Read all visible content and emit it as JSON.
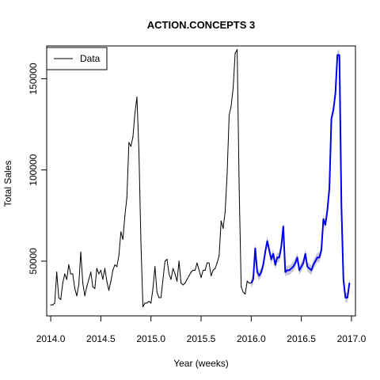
{
  "chart_data": {
    "type": "line",
    "title": "ACTION.CONCEPTS 3",
    "xlabel": "Year (weeks)",
    "ylabel": "Total Sales",
    "xlim": [
      2013.96,
      2017.04
    ],
    "ylim": [
      20000,
      168000
    ],
    "x_ticks": [
      {
        "value": 2014.0,
        "label": "2014.0"
      },
      {
        "value": 2014.5,
        "label": "2014.5"
      },
      {
        "value": 2015.0,
        "label": "2015.0"
      },
      {
        "value": 2015.5,
        "label": "2015.5"
      },
      {
        "value": 2016.0,
        "label": "2016.0"
      },
      {
        "value": 2016.5,
        "label": "2016.5"
      },
      {
        "value": 2017.0,
        "label": "2017.0"
      }
    ],
    "y_ticks": [
      {
        "value": 50000,
        "label": "50000"
      },
      {
        "value": 100000,
        "label": "100000"
      },
      {
        "value": 150000,
        "label": "150000"
      }
    ],
    "grid": false,
    "legend": {
      "position": "top-left",
      "entries": [
        {
          "label": "Data",
          "color": "#000000"
        }
      ]
    },
    "series": [
      {
        "name": "Data",
        "color": "#000000",
        "points": [
          [
            2014.0,
            26000
          ],
          [
            2014.02,
            26000
          ],
          [
            2014.04,
            27000
          ],
          [
            2014.06,
            44000
          ],
          [
            2014.08,
            30000
          ],
          [
            2014.1,
            29000
          ],
          [
            2014.12,
            38000
          ],
          [
            2014.14,
            43000
          ],
          [
            2014.16,
            40000
          ],
          [
            2014.18,
            48000
          ],
          [
            2014.2,
            43000
          ],
          [
            2014.22,
            43000
          ],
          [
            2014.24,
            35000
          ],
          [
            2014.26,
            31000
          ],
          [
            2014.28,
            37000
          ],
          [
            2014.3,
            55000
          ],
          [
            2014.32,
            38000
          ],
          [
            2014.34,
            31000
          ],
          [
            2014.36,
            36000
          ],
          [
            2014.38,
            40000
          ],
          [
            2014.4,
            44000
          ],
          [
            2014.42,
            36000
          ],
          [
            2014.44,
            35000
          ],
          [
            2014.46,
            46000
          ],
          [
            2014.48,
            43000
          ],
          [
            2014.5,
            45000
          ],
          [
            2014.52,
            40000
          ],
          [
            2014.54,
            46000
          ],
          [
            2014.56,
            39000
          ],
          [
            2014.58,
            34000
          ],
          [
            2014.6,
            39000
          ],
          [
            2014.62,
            45000
          ],
          [
            2014.64,
            48000
          ],
          [
            2014.66,
            47000
          ],
          [
            2014.68,
            53000
          ],
          [
            2014.7,
            66000
          ],
          [
            2014.72,
            62000
          ],
          [
            2014.74,
            75000
          ],
          [
            2014.76,
            85000
          ],
          [
            2014.78,
            115000
          ],
          [
            2014.8,
            113000
          ],
          [
            2014.82,
            118000
          ],
          [
            2014.84,
            131000
          ],
          [
            2014.86,
            140000
          ],
          [
            2014.88,
            110000
          ],
          [
            2014.9,
            60000
          ],
          [
            2014.92,
            25000
          ],
          [
            2014.94,
            27000
          ],
          [
            2014.96,
            27000
          ],
          [
            2014.98,
            28000
          ],
          [
            2015.0,
            27000
          ],
          [
            2015.02,
            35000
          ],
          [
            2015.04,
            47000
          ],
          [
            2015.06,
            33000
          ],
          [
            2015.08,
            30000
          ],
          [
            2015.1,
            30000
          ],
          [
            2015.12,
            40000
          ],
          [
            2015.14,
            50000
          ],
          [
            2015.16,
            51000
          ],
          [
            2015.18,
            43000
          ],
          [
            2015.2,
            40000
          ],
          [
            2015.22,
            46000
          ],
          [
            2015.24,
            43000
          ],
          [
            2015.26,
            39000
          ],
          [
            2015.28,
            50000
          ],
          [
            2015.3,
            38000
          ],
          [
            2015.32,
            37000
          ],
          [
            2015.34,
            38000
          ],
          [
            2015.36,
            40000
          ],
          [
            2015.38,
            42000
          ],
          [
            2015.4,
            44000
          ],
          [
            2015.42,
            45000
          ],
          [
            2015.44,
            45000
          ],
          [
            2015.46,
            49000
          ],
          [
            2015.48,
            45000
          ],
          [
            2015.5,
            41000
          ],
          [
            2015.52,
            45000
          ],
          [
            2015.54,
            45000
          ],
          [
            2015.56,
            49000
          ],
          [
            2015.58,
            49000
          ],
          [
            2015.6,
            42000
          ],
          [
            2015.62,
            45000
          ],
          [
            2015.64,
            46000
          ],
          [
            2015.66,
            49000
          ],
          [
            2015.68,
            53000
          ],
          [
            2015.7,
            72000
          ],
          [
            2015.72,
            68000
          ],
          [
            2015.74,
            77000
          ],
          [
            2015.76,
            98000
          ],
          [
            2015.78,
            130000
          ],
          [
            2015.8,
            135000
          ],
          [
            2015.82,
            145000
          ],
          [
            2015.84,
            164000
          ],
          [
            2015.86,
            166000
          ],
          [
            2015.88,
            90000
          ],
          [
            2015.9,
            36000
          ],
          [
            2015.92,
            33000
          ],
          [
            2015.94,
            32000
          ],
          [
            2015.96,
            39000
          ],
          [
            2015.98,
            38000
          ],
          [
            2016.0,
            38000
          ]
        ]
      },
      {
        "name": "",
        "color": "#0000ee",
        "band_color": "#c8c8d8",
        "points": [
          [
            2016.0,
            38000
          ],
          [
            2016.02,
            40000
          ],
          [
            2016.04,
            57000
          ],
          [
            2016.06,
            44000
          ],
          [
            2016.08,
            42000
          ],
          [
            2016.1,
            44000
          ],
          [
            2016.12,
            48000
          ],
          [
            2016.14,
            55000
          ],
          [
            2016.16,
            61000
          ],
          [
            2016.18,
            56000
          ],
          [
            2016.2,
            51000
          ],
          [
            2016.22,
            54000
          ],
          [
            2016.24,
            48000
          ],
          [
            2016.26,
            52000
          ],
          [
            2016.28,
            52000
          ],
          [
            2016.3,
            58000
          ],
          [
            2016.32,
            69000
          ],
          [
            2016.34,
            44000
          ],
          [
            2016.36,
            45000
          ],
          [
            2016.38,
            45000
          ],
          [
            2016.4,
            46000
          ],
          [
            2016.42,
            47000
          ],
          [
            2016.44,
            49000
          ],
          [
            2016.46,
            52000
          ],
          [
            2016.48,
            45000
          ],
          [
            2016.5,
            47000
          ],
          [
            2016.52,
            49000
          ],
          [
            2016.54,
            54000
          ],
          [
            2016.56,
            47000
          ],
          [
            2016.58,
            46000
          ],
          [
            2016.6,
            45000
          ],
          [
            2016.62,
            48000
          ],
          [
            2016.64,
            50000
          ],
          [
            2016.66,
            52000
          ],
          [
            2016.68,
            52000
          ],
          [
            2016.7,
            56000
          ],
          [
            2016.72,
            73000
          ],
          [
            2016.74,
            70000
          ],
          [
            2016.76,
            78000
          ],
          [
            2016.78,
            90000
          ],
          [
            2016.8,
            128000
          ],
          [
            2016.82,
            133000
          ],
          [
            2016.84,
            142000
          ],
          [
            2016.86,
            163000
          ],
          [
            2016.88,
            163000
          ],
          [
            2016.9,
            80000
          ],
          [
            2016.92,
            40000
          ],
          [
            2016.94,
            30000
          ],
          [
            2016.96,
            30000
          ],
          [
            2016.98,
            38000
          ]
        ]
      }
    ]
  }
}
